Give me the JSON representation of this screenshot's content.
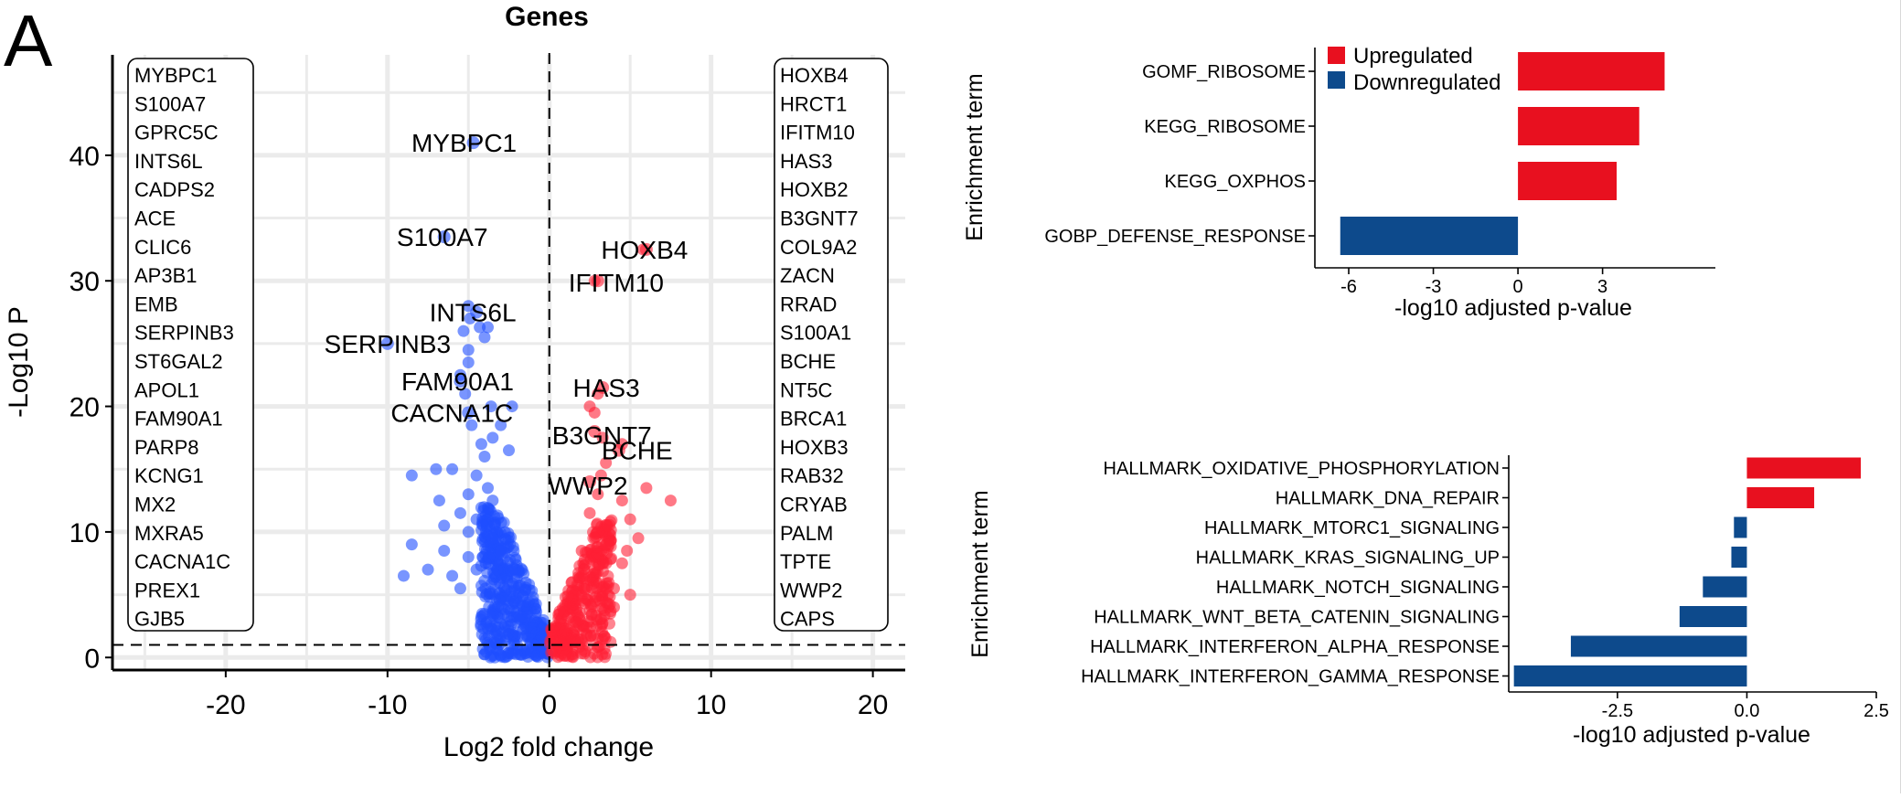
{
  "figure": {
    "panel_label": "A"
  },
  "colors": {
    "up": "#e8101f",
    "down": "#0d4a8c",
    "volcano_up": "#ff1f35",
    "volcano_down": "#1f4fff",
    "grid": "#ebebeb"
  },
  "chart_data": [
    {
      "type": "scatter",
      "title": "Genes",
      "xlabel": "Log2 fold change",
      "ylabel": "-Log10 P",
      "xlim": [
        -27,
        22
      ],
      "ylim": [
        -1,
        48
      ],
      "xticks": [
        "-20",
        "-10",
        "0",
        "10",
        "20"
      ],
      "xtick_values": [
        -20,
        -10,
        0,
        10,
        20
      ],
      "yticks": [
        "0",
        "10",
        "20",
        "30",
        "40"
      ],
      "ytick_values": [
        0,
        10,
        20,
        30,
        40
      ],
      "grid": true,
      "threshold_y": 1,
      "threshold_x": 0,
      "down_gene_list": [
        "MYBPC1",
        "S100A7",
        "GPRC5C",
        "INTS6L",
        "CADPS2",
        "ACE",
        "CLIC6",
        "AP3B1",
        "EMB",
        "SERPINB3",
        "ST6GAL2",
        "APOL1",
        "FAM90A1",
        "PARP8",
        "KCNG1",
        "MX2",
        "MXRA5",
        "CACNA1C",
        "PREX1",
        "GJB5"
      ],
      "up_gene_list": [
        "HOXB4",
        "HRCT1",
        "IFITM10",
        "HAS3",
        "HOXB2",
        "B3GNT7",
        "COL9A2",
        "ZACN",
        "RRAD",
        "S100A1",
        "BCHE",
        "NT5C",
        "BRCA1",
        "HOXB3",
        "RAB32",
        "CRYAB",
        "PALM",
        "TPTE",
        "WWP2",
        "CAPS"
      ],
      "labeled_points": [
        {
          "gene": "MYBPC1",
          "x": -4.7,
          "y": 41.0
        },
        {
          "gene": "S100A7",
          "x": -6.5,
          "y": 33.5
        },
        {
          "gene": "INTS6L",
          "x": -4.5,
          "y": 27.5
        },
        {
          "gene": "SERPINB3",
          "x": -10.0,
          "y": 25.0
        },
        {
          "gene": "FAM90A1",
          "x": -5.5,
          "y": 22.0
        },
        {
          "gene": "CACNA1C",
          "x": -5.0,
          "y": 19.5
        },
        {
          "gene": "HOXB4",
          "x": 6.0,
          "y": 32.5
        },
        {
          "gene": "IFITM10",
          "x": 3.0,
          "y": 30.0
        },
        {
          "gene": "HAS3",
          "x": 3.3,
          "y": 21.5
        },
        {
          "gene": "B3GNT7",
          "x": 2.8,
          "y": 18.0
        },
        {
          "gene": "BCHE",
          "x": 4.3,
          "y": 16.5
        },
        {
          "gene": "WWP2",
          "x": 2.5,
          "y": 14.0
        }
      ],
      "down_points": [
        [
          -8.5,
          9.0
        ],
        [
          -9.0,
          6.5
        ],
        [
          -7.5,
          7.0
        ],
        [
          -5.5,
          5.5
        ],
        [
          -6.0,
          6.5
        ],
        [
          -5.0,
          8.0
        ],
        [
          -6.8,
          12.5
        ],
        [
          -5.5,
          11.5
        ],
        [
          -5.0,
          13.0
        ],
        [
          -7.0,
          15.0
        ],
        [
          -6.0,
          15.0
        ],
        [
          -8.5,
          14.5
        ],
        [
          -4.5,
          14.5
        ],
        [
          -4.0,
          16.0
        ],
        [
          -3.5,
          17.5
        ],
        [
          -4.2,
          17.0
        ],
        [
          -3.0,
          18.5
        ],
        [
          -2.5,
          16.5
        ],
        [
          -3.6,
          20.0
        ],
        [
          -2.3,
          20.0
        ],
        [
          -5.2,
          21.0
        ],
        [
          -4.8,
          18.5
        ],
        [
          -5.0,
          24.5
        ],
        [
          -5.3,
          26.0
        ],
        [
          -4.9,
          27.0
        ],
        [
          -5.0,
          28.0
        ],
        [
          -4.3,
          26.3
        ],
        [
          -3.8,
          26.3
        ],
        [
          -4.0,
          25.5
        ],
        [
          -5.0,
          23.5
        ],
        [
          -5.5,
          22.5
        ],
        [
          -3.5,
          12.5
        ],
        [
          -3.8,
          13.5
        ],
        [
          -6.5,
          10.5
        ],
        [
          -4.5,
          11.0
        ],
        [
          -5.0,
          10.0
        ],
        [
          -6.5,
          8.5
        ],
        [
          -4.5,
          7.0
        ],
        [
          -3.5,
          9.5
        ],
        [
          -3.0,
          8.5
        ]
      ],
      "up_points": [
        [
          7.5,
          12.5
        ],
        [
          6.0,
          13.5
        ],
        [
          4.5,
          12.5
        ],
        [
          5.0,
          11.0
        ],
        [
          5.5,
          9.5
        ],
        [
          3.5,
          9.0
        ],
        [
          4.5,
          7.5
        ],
        [
          5.0,
          5.0
        ],
        [
          4.0,
          5.5
        ],
        [
          3.5,
          15.5
        ],
        [
          3.0,
          13.0
        ],
        [
          2.5,
          11.5
        ],
        [
          2.0,
          8.5
        ],
        [
          2.8,
          7.0
        ],
        [
          4.0,
          4.0
        ],
        [
          2.5,
          20.0
        ],
        [
          2.8,
          19.5
        ],
        [
          3.3,
          17.5
        ],
        [
          4.5,
          17.0
        ],
        [
          3.0,
          21.0
        ],
        [
          2.8,
          30.0
        ],
        [
          5.8,
          32.5
        ],
        [
          3.2,
          14.5
        ],
        [
          3.6,
          10.5
        ],
        [
          4.8,
          8.5
        ]
      ]
    },
    {
      "type": "bar",
      "orientation": "horizontal",
      "ylabel": "Enrichment term",
      "xlabel": "-log10 adjusted p-value",
      "categories": [
        "GOMF_RIBOSOME",
        "KEGG_RIBOSOME",
        "KEGG_OXPHOS",
        "GOBP_DEFENSE_RESPONSE"
      ],
      "values": [
        5.2,
        4.3,
        3.5,
        -6.3
      ],
      "xlim": [
        -7.2,
        7.0
      ],
      "xticks": [
        "-6",
        "-3",
        "0",
        "3"
      ],
      "xtick_values": [
        -6,
        -3,
        0,
        3
      ],
      "grid": false,
      "legend_position": "top-left",
      "legend": [
        {
          "label": "Upregulated",
          "color": "#e8101f"
        },
        {
          "label": "Downregulated",
          "color": "#0d4a8c"
        }
      ]
    },
    {
      "type": "bar",
      "orientation": "horizontal",
      "ylabel": "Enrichment term",
      "xlabel": "-log10 adjusted p-value",
      "categories": [
        "HALLMARK_OXIDATIVE_PHOSPHORYLATION",
        "HALLMARK_DNA_REPAIR",
        "HALLMARK_MTORC1_SIGNALING",
        "HALLMARK_KRAS_SIGNALING_UP",
        "HALLMARK_NOTCH_SIGNALING",
        "HALLMARK_WNT_BETA_CATENIN_SIGNALING",
        "HALLMARK_INTERFERON_ALPHA_RESPONSE",
        "HALLMARK_INTERFERON_GAMMA_RESPONSE"
      ],
      "values": [
        2.2,
        1.3,
        -0.25,
        -0.3,
        -0.85,
        -1.3,
        -3.4,
        -4.5
      ],
      "xlim": [
        -4.6,
        2.5
      ],
      "xticks": [
        "-2.5",
        "0.0",
        "2.5"
      ],
      "xtick_values": [
        -2.5,
        0.0,
        2.5
      ],
      "grid": false
    }
  ]
}
